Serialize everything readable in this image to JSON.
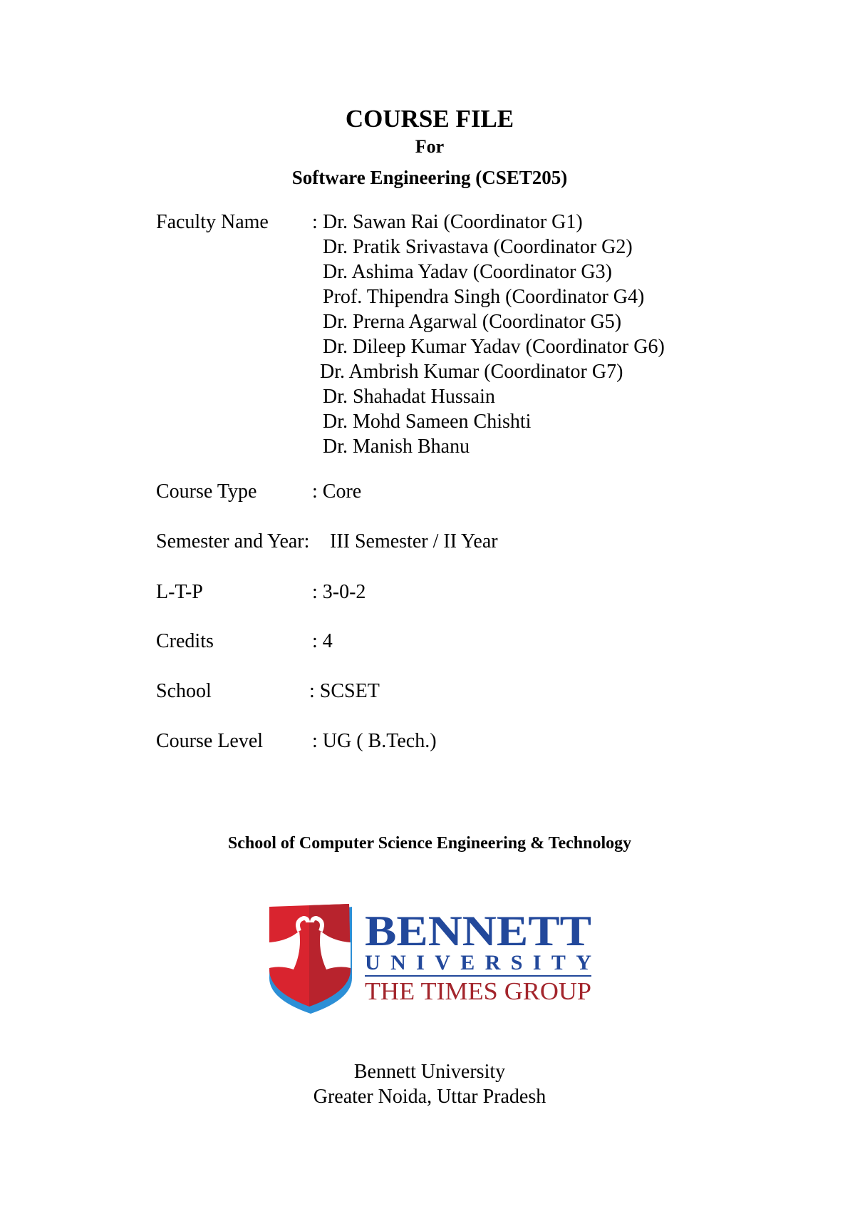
{
  "header": {
    "title": "COURSE FILE",
    "for": "For",
    "course": "Software Engineering (CSET205)"
  },
  "faculty": {
    "label": "Faculty Name",
    "colon": ":",
    "names": [
      "Dr. Sawan Rai (Coordinator G1)",
      "Dr. Pratik Srivastava (Coordinator G2)",
      "Dr. Ashima Yadav (Coordinator G3)",
      "Prof. Thipendra Singh (Coordinator G4)",
      "Dr. Prerna Agarwal (Coordinator G5)",
      "Dr. Dileep Kumar Yadav (Coordinator G6)",
      "Dr. Ambrish Kumar (Coordinator G7)",
      "Dr. Shahadat Hussain",
      "Dr. Mohd Sameen Chishti",
      "Dr. Manish Bhanu"
    ]
  },
  "details": [
    {
      "label": "Course Type",
      "value": ": Core"
    },
    {
      "label": "Semester and Year:",
      "value": "III Semester / II Year"
    },
    {
      "label": "L-T-P",
      "value": ": 3-0-2"
    },
    {
      "label": "Credits",
      "value": ": 4"
    },
    {
      "label": "School",
      "value": ": SCSET"
    },
    {
      "label": "Course Level",
      "value": ": UG ( B.Tech.)"
    }
  ],
  "school_name": "School of Computer Science Engineering & Technology",
  "logo": {
    "line1": "BENNETT",
    "line2": "UNIVERSITY",
    "line3": "THE TIMES GROUP",
    "colors": {
      "blue": "#22489b",
      "red": "#a3252c",
      "shield_red": "#d9242f",
      "shield_blue": "#2c8fd6"
    }
  },
  "footer": {
    "university": "Bennett University",
    "location": "Greater Noida, Uttar Pradesh"
  }
}
